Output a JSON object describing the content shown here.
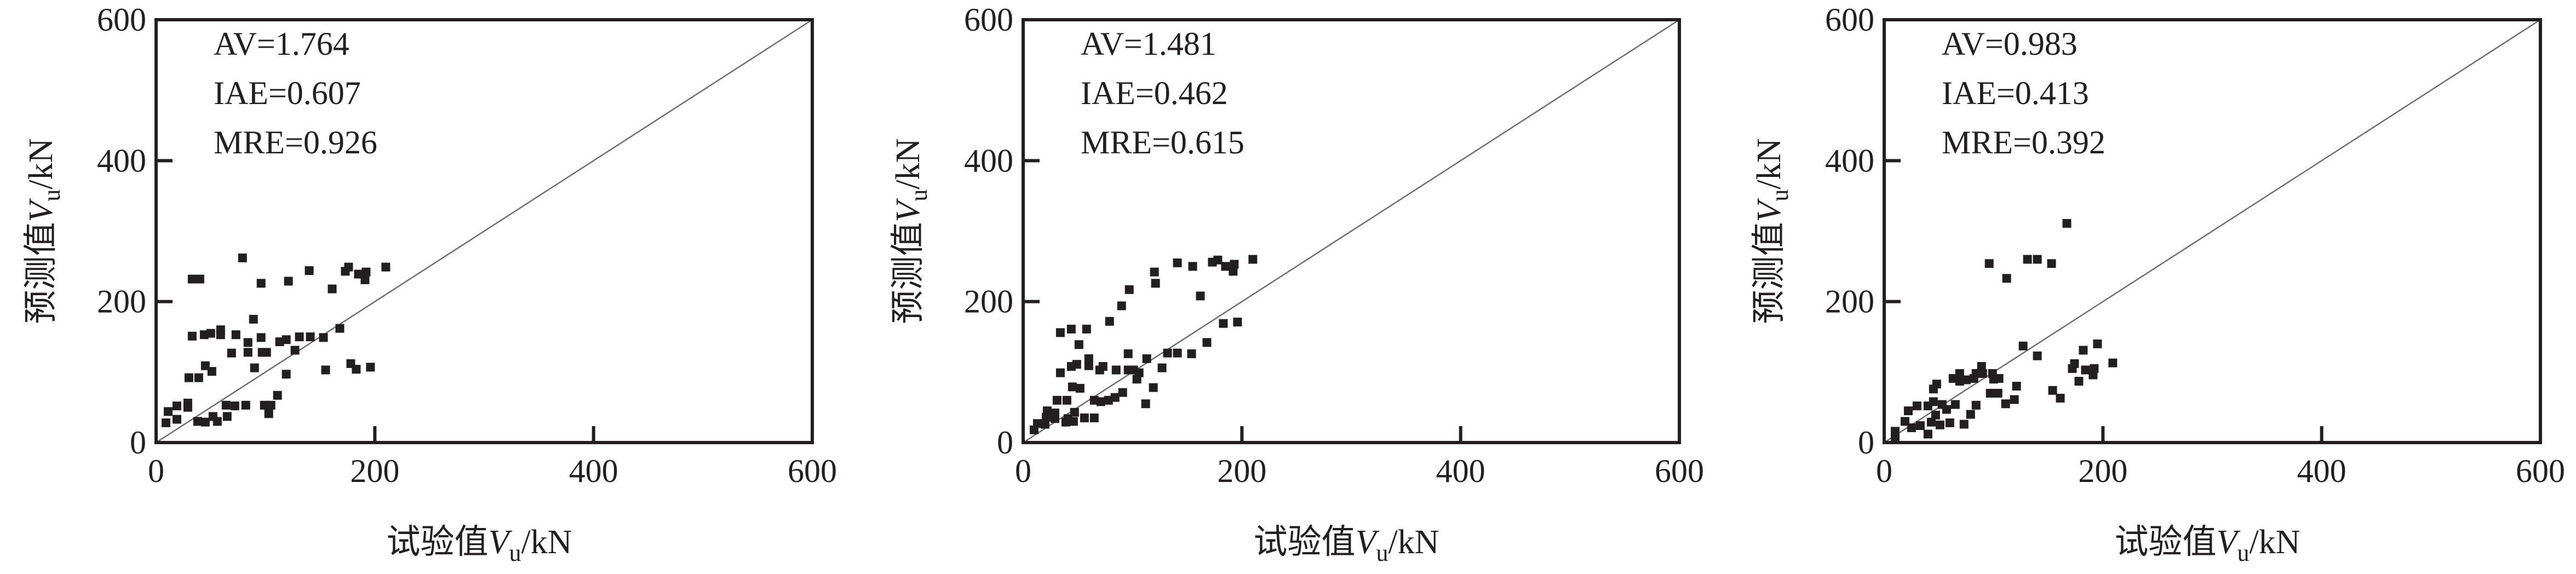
{
  "chart_data": [
    {
      "type": "scatter",
      "title": "",
      "xlabel": {
        "prefix": "试验值",
        "symbol": "V",
        "sub": "u",
        "unit": "/kN"
      },
      "ylabel": {
        "prefix": "预测值",
        "symbol": "V",
        "sub": "u",
        "unit": "/kN"
      },
      "xlim": [
        0,
        600
      ],
      "ylim": [
        0,
        600
      ],
      "xticks": [
        "0",
        "200",
        "400",
        "600"
      ],
      "yticks": [
        "0",
        "200",
        "400",
        "600"
      ],
      "reference_line": "y = x",
      "stats": [
        "AV=1.764",
        "IAE=0.607",
        "MRE=0.926"
      ],
      "points": [
        [
          79,
          262
        ],
        [
          33,
          232
        ],
        [
          40,
          232
        ],
        [
          96,
          226
        ],
        [
          121,
          229
        ],
        [
          140,
          244
        ],
        [
          161,
          218
        ],
        [
          173,
          243
        ],
        [
          176,
          249
        ],
        [
          185,
          239
        ],
        [
          192,
          242
        ],
        [
          191,
          231
        ],
        [
          210,
          249
        ],
        [
          89,
          175
        ],
        [
          33,
          151
        ],
        [
          44,
          153
        ],
        [
          50,
          155
        ],
        [
          59,
          160
        ],
        [
          59,
          153
        ],
        [
          73,
          153
        ],
        [
          84,
          142
        ],
        [
          96,
          149
        ],
        [
          69,
          127
        ],
        [
          84,
          128
        ],
        [
          97,
          128
        ],
        [
          101,
          128
        ],
        [
          113,
          143
        ],
        [
          119,
          146
        ],
        [
          127,
          131
        ],
        [
          131,
          150
        ],
        [
          141,
          150
        ],
        [
          153,
          149
        ],
        [
          168,
          162
        ],
        [
          45,
          109
        ],
        [
          51,
          101
        ],
        [
          30,
          92
        ],
        [
          39,
          92
        ],
        [
          90,
          106
        ],
        [
          119,
          97
        ],
        [
          155,
          103
        ],
        [
          178,
          112
        ],
        [
          183,
          104
        ],
        [
          196,
          107
        ],
        [
          111,
          67
        ],
        [
          11,
          44
        ],
        [
          19,
          52
        ],
        [
          29,
          56
        ],
        [
          29,
          50
        ],
        [
          9,
          28
        ],
        [
          19,
          33
        ],
        [
          38,
          30
        ],
        [
          45,
          29
        ],
        [
          52,
          37
        ],
        [
          56,
          30
        ],
        [
          65,
          37
        ],
        [
          64,
          53
        ],
        [
          72,
          52
        ],
        [
          82,
          53
        ],
        [
          99,
          53
        ],
        [
          105,
          53
        ],
        [
          103,
          41
        ]
      ]
    },
    {
      "type": "scatter",
      "title": "",
      "xlabel": {
        "prefix": "试验值",
        "symbol": "V",
        "sub": "u",
        "unit": "/kN"
      },
      "ylabel": {
        "prefix": "预测值",
        "symbol": "V",
        "sub": "u",
        "unit": "/kN"
      },
      "xlim": [
        0,
        600
      ],
      "ylim": [
        0,
        600
      ],
      "xticks": [
        "0",
        "200",
        "400",
        "600"
      ],
      "yticks": [
        "0",
        "200",
        "400",
        "600"
      ],
      "reference_line": "y = x",
      "stats": [
        "AV=1.481",
        "IAE=0.462",
        "MRE=0.615"
      ],
      "points": [
        [
          141,
          255
        ],
        [
          155,
          250
        ],
        [
          173,
          256
        ],
        [
          178,
          259
        ],
        [
          185,
          250
        ],
        [
          193,
          253
        ],
        [
          192,
          243
        ],
        [
          210,
          260
        ],
        [
          120,
          242
        ],
        [
          121,
          226
        ],
        [
          97,
          217
        ],
        [
          90,
          194
        ],
        [
          79,
          172
        ],
        [
          162,
          208
        ],
        [
          183,
          169
        ],
        [
          196,
          171
        ],
        [
          168,
          142
        ],
        [
          132,
          127
        ],
        [
          141,
          127
        ],
        [
          154,
          126
        ],
        [
          96,
          126
        ],
        [
          113,
          119
        ],
        [
          127,
          106
        ],
        [
          34,
          156
        ],
        [
          44,
          161
        ],
        [
          58,
          161
        ],
        [
          51,
          139
        ],
        [
          60,
          119
        ],
        [
          60,
          109
        ],
        [
          44,
          108
        ],
        [
          49,
          111
        ],
        [
          34,
          99
        ],
        [
          70,
          103
        ],
        [
          73,
          108
        ],
        [
          85,
          103
        ],
        [
          96,
          103
        ],
        [
          101,
          103
        ],
        [
          106,
          99
        ],
        [
          104,
          90
        ],
        [
          119,
          78
        ],
        [
          112,
          55
        ],
        [
          45,
          79
        ],
        [
          52,
          77
        ],
        [
          31,
          60
        ],
        [
          40,
          60
        ],
        [
          65,
          60
        ],
        [
          71,
          58
        ],
        [
          78,
          60
        ],
        [
          84,
          64
        ],
        [
          91,
          71
        ],
        [
          10,
          18
        ],
        [
          13,
          27
        ],
        [
          20,
          26
        ],
        [
          21,
          36
        ],
        [
          29,
          42
        ],
        [
          29,
          34
        ],
        [
          39,
          29
        ],
        [
          46,
          30
        ],
        [
          47,
          43
        ],
        [
          56,
          35
        ],
        [
          65,
          35
        ],
        [
          41,
          34
        ],
        [
          22,
          45
        ]
      ]
    },
    {
      "type": "scatter",
      "title": "",
      "xlabel": {
        "prefix": "试验值",
        "symbol": "V",
        "sub": "u",
        "unit": "/kN"
      },
      "ylabel": {
        "prefix": "预测值",
        "symbol": "V",
        "sub": "u",
        "unit": "/kN"
      },
      "xlim": [
        0,
        600
      ],
      "ylim": [
        0,
        600
      ],
      "xticks": [
        "0",
        "200",
        "400",
        "600"
      ],
      "yticks": [
        "0",
        "200",
        "400",
        "600"
      ],
      "reference_line": "y = x",
      "stats": [
        "AV=0.983",
        "IAE=0.413",
        "MRE=0.392"
      ],
      "points": [
        [
          167,
          311
        ],
        [
          96,
          254
        ],
        [
          112,
          233
        ],
        [
          131,
          260
        ],
        [
          140,
          260
        ],
        [
          153,
          254
        ],
        [
          127,
          137
        ],
        [
          140,
          123
        ],
        [
          182,
          131
        ],
        [
          195,
          140
        ],
        [
          174,
          112
        ],
        [
          172,
          105
        ],
        [
          184,
          103
        ],
        [
          192,
          105
        ],
        [
          191,
          96
        ],
        [
          178,
          87
        ],
        [
          209,
          113
        ],
        [
          154,
          74
        ],
        [
          161,
          63
        ],
        [
          121,
          80
        ],
        [
          119,
          61
        ],
        [
          111,
          55
        ],
        [
          97,
          70
        ],
        [
          104,
          70
        ],
        [
          84,
          53
        ],
        [
          79,
          40
        ],
        [
          73,
          26
        ],
        [
          65,
          54
        ],
        [
          63,
          91
        ],
        [
          69,
          98
        ],
        [
          69,
          87
        ],
        [
          75,
          89
        ],
        [
          82,
          91
        ],
        [
          84,
          98
        ],
        [
          89,
          108
        ],
        [
          90,
          98
        ],
        [
          99,
          98
        ],
        [
          100,
          90
        ],
        [
          105,
          91
        ],
        [
          48,
          83
        ],
        [
          45,
          76
        ],
        [
          22,
          45
        ],
        [
          30,
          52
        ],
        [
          40,
          52
        ],
        [
          45,
          58
        ],
        [
          53,
          54
        ],
        [
          57,
          47
        ],
        [
          19,
          30
        ],
        [
          25,
          21
        ],
        [
          33,
          24
        ],
        [
          43,
          29
        ],
        [
          47,
          39
        ],
        [
          51,
          25
        ],
        [
          60,
          28
        ],
        [
          40,
          12
        ],
        [
          10,
          16
        ],
        [
          10,
          7
        ]
      ]
    }
  ],
  "colors": {
    "marker": "#231f20",
    "axis": "#231f20",
    "reference_line": "#6d6e71"
  }
}
